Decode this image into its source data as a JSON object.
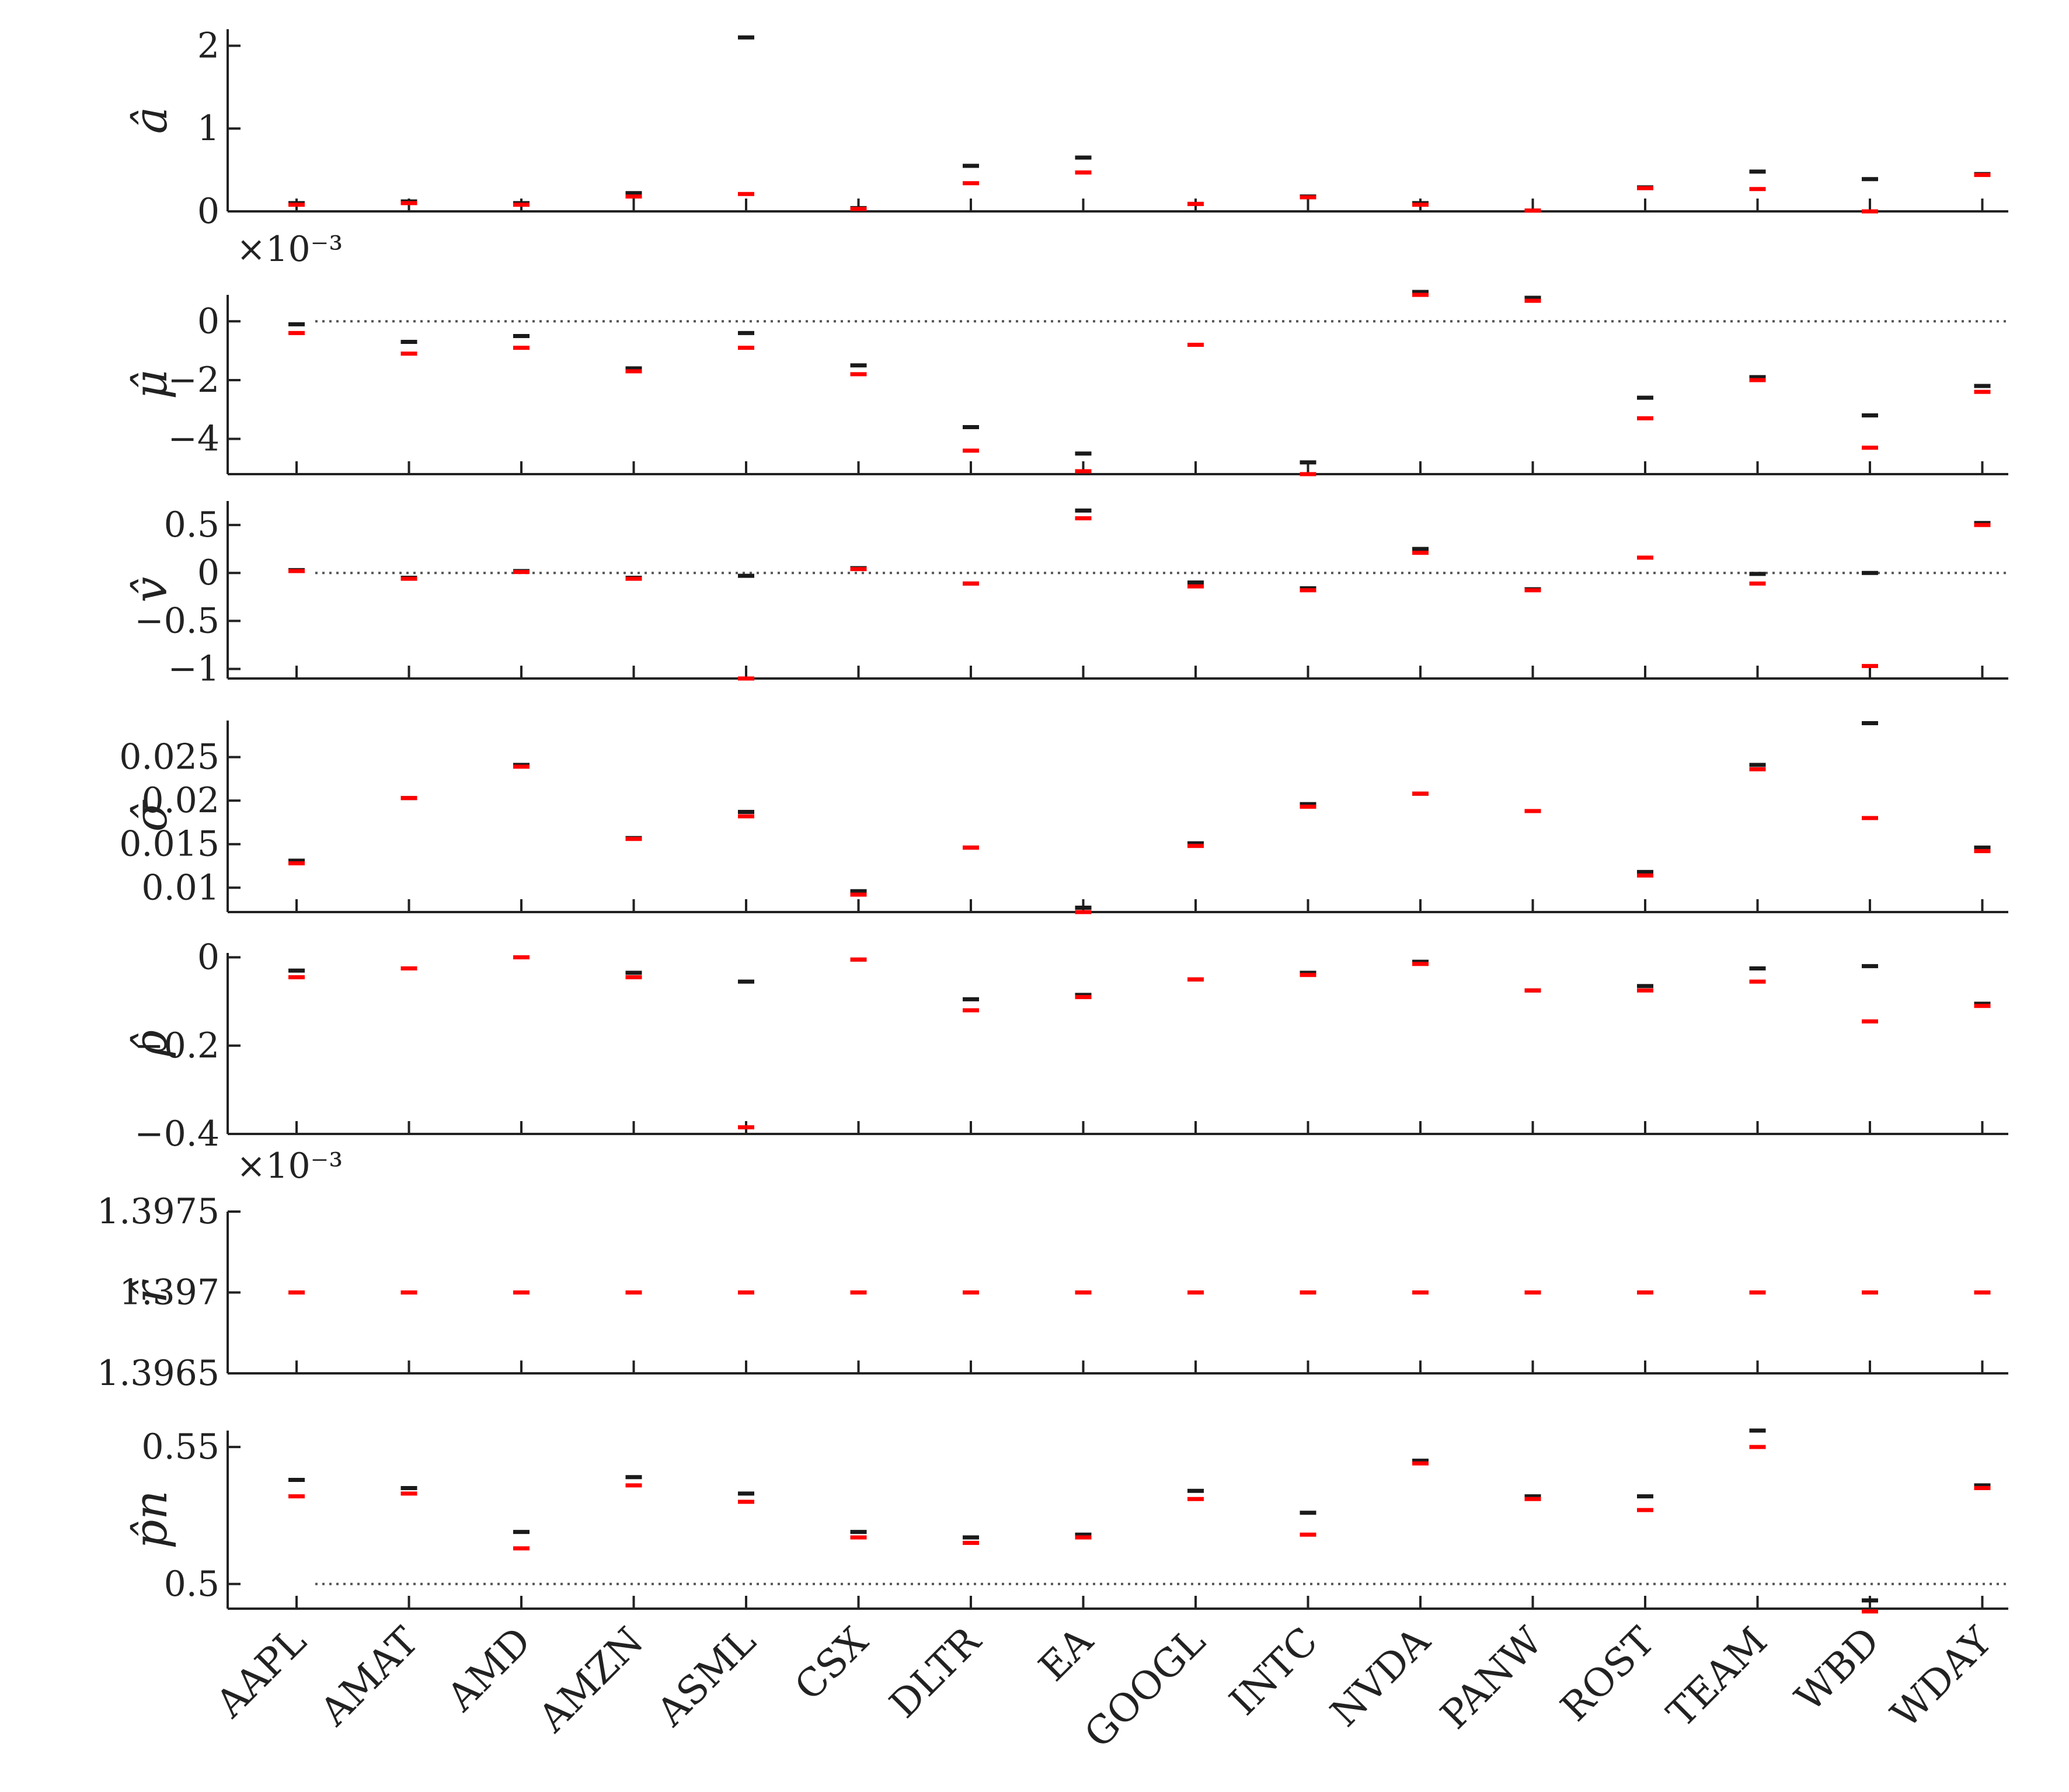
{
  "chart_data": {
    "type": "scatter",
    "categories": [
      "AAPL",
      "AMAT",
      "AMD",
      "AMZN",
      "ASML",
      "CSX",
      "DLTR",
      "EA",
      "GOOGL",
      "INTC",
      "NVDA",
      "PANW",
      "ROST",
      "TEAM",
      "WBD",
      "WDAY"
    ],
    "colors": {
      "series_a": "#1a1a1a",
      "series_b": "#ff0000",
      "axis": "#222222",
      "reference_line": "#555555"
    },
    "panels": [
      {
        "id": "a",
        "ylabel": "â",
        "ylim": [
          0,
          2.2
        ],
        "ticks": [
          0,
          1,
          2
        ],
        "tick_labels": [
          "0",
          "1",
          "2"
        ],
        "exponent": "",
        "reference_line": null,
        "series": [
          {
            "values": [
              0.1,
              0.12,
              0.1,
              0.22,
              2.1,
              0.04,
              0.55,
              0.65,
              0.09,
              0.18,
              0.1,
              0.01,
              0.29,
              0.48,
              0.39,
              0.45
            ]
          },
          {
            "values": [
              0.08,
              0.1,
              0.08,
              0.18,
              0.21,
              0.03,
              0.34,
              0.47,
              0.09,
              0.17,
              0.08,
              0.01,
              0.28,
              0.27,
              0.0,
              0.44
            ]
          }
        ]
      },
      {
        "id": "mu",
        "ylabel": "μ̂",
        "ylim": [
          -5.2,
          0.9
        ],
        "ticks": [
          0,
          -2,
          -4
        ],
        "tick_labels": [
          "0",
          "−2",
          "−4"
        ],
        "exponent": "×10⁻³",
        "reference_line": 0,
        "series": [
          {
            "values": [
              -0.1,
              -0.7,
              -0.5,
              -1.6,
              -0.4,
              -1.5,
              -3.6,
              -4.5,
              -0.8,
              -4.8,
              1.0,
              0.8,
              -2.6,
              -1.9,
              -3.2,
              -2.2
            ]
          },
          {
            "values": [
              -0.4,
              -1.1,
              -0.9,
              -1.7,
              -0.9,
              -1.8,
              -4.4,
              -5.1,
              -0.8,
              -5.2,
              0.9,
              0.7,
              -3.3,
              -2.0,
              -4.3,
              -2.4
            ]
          }
        ]
      },
      {
        "id": "v",
        "ylabel": "v̂",
        "ylim": [
          -1.1,
          0.75
        ],
        "ticks": [
          0.5,
          0,
          -0.5,
          -1
        ],
        "tick_labels": [
          "0.5",
          "0",
          "−0.5",
          "−1"
        ],
        "exponent": "",
        "reference_line": 0,
        "series": [
          {
            "values": [
              0.03,
              -0.05,
              0.02,
              -0.05,
              -0.03,
              0.05,
              -0.11,
              0.65,
              -0.1,
              -0.16,
              0.25,
              -0.17,
              0.16,
              -0.01,
              0.0,
              0.52
            ]
          },
          {
            "values": [
              0.02,
              -0.06,
              0.01,
              -0.06,
              -1.1,
              0.04,
              -0.11,
              0.57,
              -0.14,
              -0.18,
              0.21,
              -0.18,
              0.16,
              -0.11,
              -0.97,
              0.5
            ]
          }
        ]
      },
      {
        "id": "sigma",
        "ylabel": "σ̂",
        "ylim": [
          0.0072,
          0.0292
        ],
        "ticks": [
          0.025,
          0.02,
          0.015,
          0.01
        ],
        "tick_labels": [
          "0.025",
          "0.02",
          "0.015",
          "0.01"
        ],
        "exponent": "",
        "reference_line": null,
        "series": [
          {
            "values": [
              0.0131,
              0.0203,
              0.0241,
              0.0157,
              0.0187,
              0.0096,
              0.0146,
              0.0077,
              0.0151,
              0.0196,
              0.0208,
              0.0188,
              0.0118,
              0.0241,
              0.0289,
              0.0146
            ]
          },
          {
            "values": [
              0.0128,
              0.0203,
              0.0239,
              0.0156,
              0.0182,
              0.0092,
              0.0146,
              0.0072,
              0.0148,
              0.0193,
              0.0208,
              0.0188,
              0.0114,
              0.0236,
              0.018,
              0.0142
            ]
          }
        ]
      },
      {
        "id": "rho",
        "ylabel": "ρ̂",
        "ylim": [
          -0.4,
          0.01
        ],
        "ticks": [
          0,
          -0.2,
          -0.4
        ],
        "tick_labels": [
          "0",
          "−0.2",
          "−0.4"
        ],
        "exponent": "",
        "reference_line": null,
        "series": [
          {
            "values": [
              -0.03,
              -0.025,
              0.0,
              -0.035,
              -0.055,
              -0.005,
              -0.095,
              -0.085,
              -0.05,
              -0.035,
              -0.01,
              -0.075,
              -0.065,
              -0.025,
              -0.02,
              -0.105
            ]
          },
          {
            "values": [
              -0.045,
              -0.025,
              0.0,
              -0.045,
              -0.385,
              -0.005,
              -0.12,
              -0.09,
              -0.05,
              -0.04,
              -0.015,
              -0.075,
              -0.075,
              -0.055,
              -0.145,
              -0.11
            ]
          }
        ]
      },
      {
        "id": "r",
        "ylabel": "r̂",
        "ylim": [
          1.3965,
          1.3975
        ],
        "ticks": [
          1.3975,
          1.397,
          1.3965
        ],
        "tick_labels": [
          "1.3975",
          "1.397",
          "1.3965"
        ],
        "exponent": "×10⁻³",
        "reference_line": null,
        "series": [
          {
            "values": [
              1.397,
              1.397,
              1.397,
              1.397,
              1.397,
              1.397,
              1.397,
              1.397,
              1.397,
              1.397,
              1.397,
              1.397,
              1.397,
              1.397,
              1.397,
              1.397
            ]
          },
          {
            "values": [
              1.397,
              1.397,
              1.397,
              1.397,
              1.397,
              1.397,
              1.397,
              1.397,
              1.397,
              1.397,
              1.397,
              1.397,
              1.397,
              1.397,
              1.397,
              1.397
            ]
          }
        ]
      },
      {
        "id": "pn",
        "ylabel": "p̂n",
        "ylim": [
          0.491,
          0.556
        ],
        "ticks": [
          0.55,
          0.5
        ],
        "tick_labels": [
          "0.55",
          "0.5"
        ],
        "exponent": "",
        "reference_line": 0.5,
        "series": [
          {
            "values": [
              0.538,
              0.535,
              0.519,
              0.539,
              0.533,
              0.519,
              0.517,
              0.518,
              0.534,
              0.526,
              0.545,
              0.532,
              0.532,
              0.556,
              0.494,
              0.536
            ]
          },
          {
            "values": [
              0.532,
              0.533,
              0.513,
              0.536,
              0.53,
              0.517,
              0.515,
              0.517,
              0.531,
              0.518,
              0.544,
              0.531,
              0.527,
              0.55,
              0.49,
              0.535
            ]
          }
        ]
      }
    ]
  }
}
